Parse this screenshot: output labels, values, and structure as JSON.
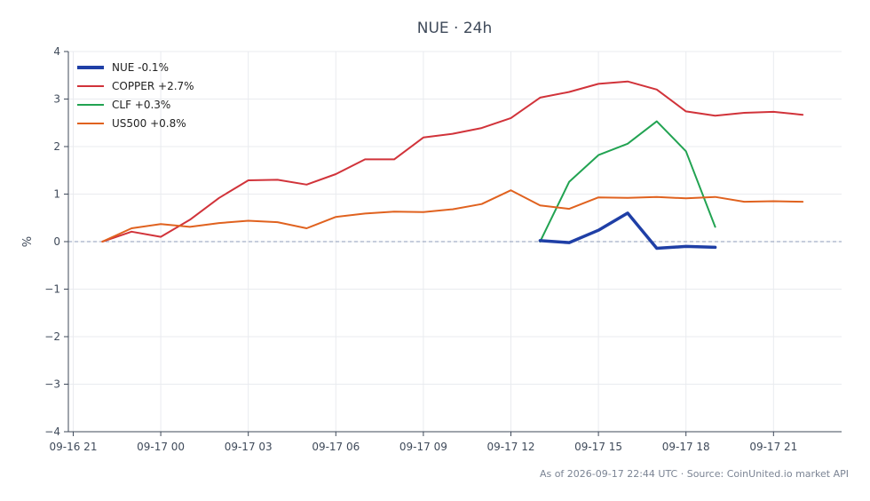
{
  "chart_data": {
    "type": "line",
    "title": "NUE · 24h",
    "xlabel": "",
    "ylabel": "%",
    "ylim": [
      -4,
      4
    ],
    "xlim": [
      "2026-09-16 20:50",
      "2026-09-17 23:20"
    ],
    "y_ticks": [
      {
        "value": 4,
        "label": "4"
      },
      {
        "value": 3,
        "label": "3"
      },
      {
        "value": 2,
        "label": "2"
      },
      {
        "value": 1,
        "label": "1"
      },
      {
        "value": 0,
        "label": "0"
      },
      {
        "value": -1,
        "label": "−1"
      },
      {
        "value": -2,
        "label": "−2"
      },
      {
        "value": -3,
        "label": "−3"
      },
      {
        "value": -4,
        "label": "−4"
      }
    ],
    "x_ticks": [
      {
        "value": "2026-09-16 21:00",
        "label": "09-16 21"
      },
      {
        "value": "2026-09-17 00:00",
        "label": "09-17 00"
      },
      {
        "value": "2026-09-17 03:00",
        "label": "09-17 03"
      },
      {
        "value": "2026-09-17 06:00",
        "label": "09-17 06"
      },
      {
        "value": "2026-09-17 09:00",
        "label": "09-17 09"
      },
      {
        "value": "2026-09-17 12:00",
        "label": "09-17 12"
      },
      {
        "value": "2026-09-17 15:00",
        "label": "09-17 15"
      },
      {
        "value": "2026-09-17 18:00",
        "label": "09-17 18"
      },
      {
        "value": "2026-09-17 21:00",
        "label": "09-17 21"
      }
    ],
    "grid": true,
    "reference_line": {
      "y": 0,
      "style": "dashed"
    },
    "legend_position": "top-left",
    "series": [
      {
        "name": "NUE -0.1%",
        "color": "#1f3fa6",
        "emphasis": true,
        "points": [
          [
            "2026-09-17 13:00",
            0.02
          ],
          [
            "2026-09-17 14:00",
            -0.02
          ],
          [
            "2026-09-17 15:00",
            0.24
          ],
          [
            "2026-09-17 16:00",
            0.6
          ],
          [
            "2026-09-17 17:00",
            -0.14
          ],
          [
            "2026-09-17 18:00",
            -0.1
          ],
          [
            "2026-09-17 19:00",
            -0.12
          ]
        ]
      },
      {
        "name": "COPPER +2.7%",
        "color": "#d1333a",
        "emphasis": false,
        "points": [
          [
            "2026-09-16 22:00",
            0.0
          ],
          [
            "2026-09-16 23:00",
            0.21
          ],
          [
            "2026-09-17 00:00",
            0.1
          ],
          [
            "2026-09-17 01:00",
            0.46
          ],
          [
            "2026-09-17 02:00",
            0.92
          ],
          [
            "2026-09-17 03:00",
            1.29
          ],
          [
            "2026-09-17 04:00",
            1.3
          ],
          [
            "2026-09-17 05:00",
            1.2
          ],
          [
            "2026-09-17 06:00",
            1.42
          ],
          [
            "2026-09-17 07:00",
            1.73
          ],
          [
            "2026-09-17 08:00",
            1.73
          ],
          [
            "2026-09-17 09:00",
            2.19
          ],
          [
            "2026-09-17 10:00",
            2.27
          ],
          [
            "2026-09-17 11:00",
            2.39
          ],
          [
            "2026-09-17 12:00",
            2.6
          ],
          [
            "2026-09-17 13:00",
            3.03
          ],
          [
            "2026-09-17 14:00",
            3.15
          ],
          [
            "2026-09-17 15:00",
            3.32
          ],
          [
            "2026-09-17 16:00",
            3.37
          ],
          [
            "2026-09-17 17:00",
            3.2
          ],
          [
            "2026-09-17 18:00",
            2.74
          ],
          [
            "2026-09-17 19:00",
            2.65
          ],
          [
            "2026-09-17 20:00",
            2.71
          ],
          [
            "2026-09-17 21:00",
            2.73
          ],
          [
            "2026-09-17 22:00",
            2.67
          ]
        ]
      },
      {
        "name": "CLF +0.3%",
        "color": "#22a352",
        "emphasis": false,
        "points": [
          [
            "2026-09-17 13:00",
            0.0
          ],
          [
            "2026-09-17 14:00",
            1.26
          ],
          [
            "2026-09-17 15:00",
            1.82
          ],
          [
            "2026-09-17 16:00",
            2.06
          ],
          [
            "2026-09-17 17:00",
            2.53
          ],
          [
            "2026-09-17 18:00",
            1.9
          ],
          [
            "2026-09-17 19:00",
            0.31
          ]
        ]
      },
      {
        "name": "US500 +0.8%",
        "color": "#e0621f",
        "emphasis": false,
        "points": [
          [
            "2026-09-16 22:00",
            0.0
          ],
          [
            "2026-09-16 23:00",
            0.28
          ],
          [
            "2026-09-17 00:00",
            0.37
          ],
          [
            "2026-09-17 01:00",
            0.31
          ],
          [
            "2026-09-17 02:00",
            0.39
          ],
          [
            "2026-09-17 03:00",
            0.44
          ],
          [
            "2026-09-17 04:00",
            0.41
          ],
          [
            "2026-09-17 05:00",
            0.28
          ],
          [
            "2026-09-17 06:00",
            0.52
          ],
          [
            "2026-09-17 07:00",
            0.59
          ],
          [
            "2026-09-17 08:00",
            0.63
          ],
          [
            "2026-09-17 09:00",
            0.62
          ],
          [
            "2026-09-17 10:00",
            0.68
          ],
          [
            "2026-09-17 11:00",
            0.79
          ],
          [
            "2026-09-17 12:00",
            1.08
          ],
          [
            "2026-09-17 13:00",
            0.76
          ],
          [
            "2026-09-17 14:00",
            0.69
          ],
          [
            "2026-09-17 15:00",
            0.93
          ],
          [
            "2026-09-17 16:00",
            0.92
          ],
          [
            "2026-09-17 17:00",
            0.94
          ],
          [
            "2026-09-17 18:00",
            0.91
          ],
          [
            "2026-09-17 19:00",
            0.94
          ],
          [
            "2026-09-17 20:00",
            0.84
          ],
          [
            "2026-09-17 21:00",
            0.85
          ],
          [
            "2026-09-17 22:00",
            0.84
          ]
        ]
      }
    ],
    "footnote": "As of 2026-09-17 22:44 UTC · Source: CoinUnited.io market API"
  }
}
